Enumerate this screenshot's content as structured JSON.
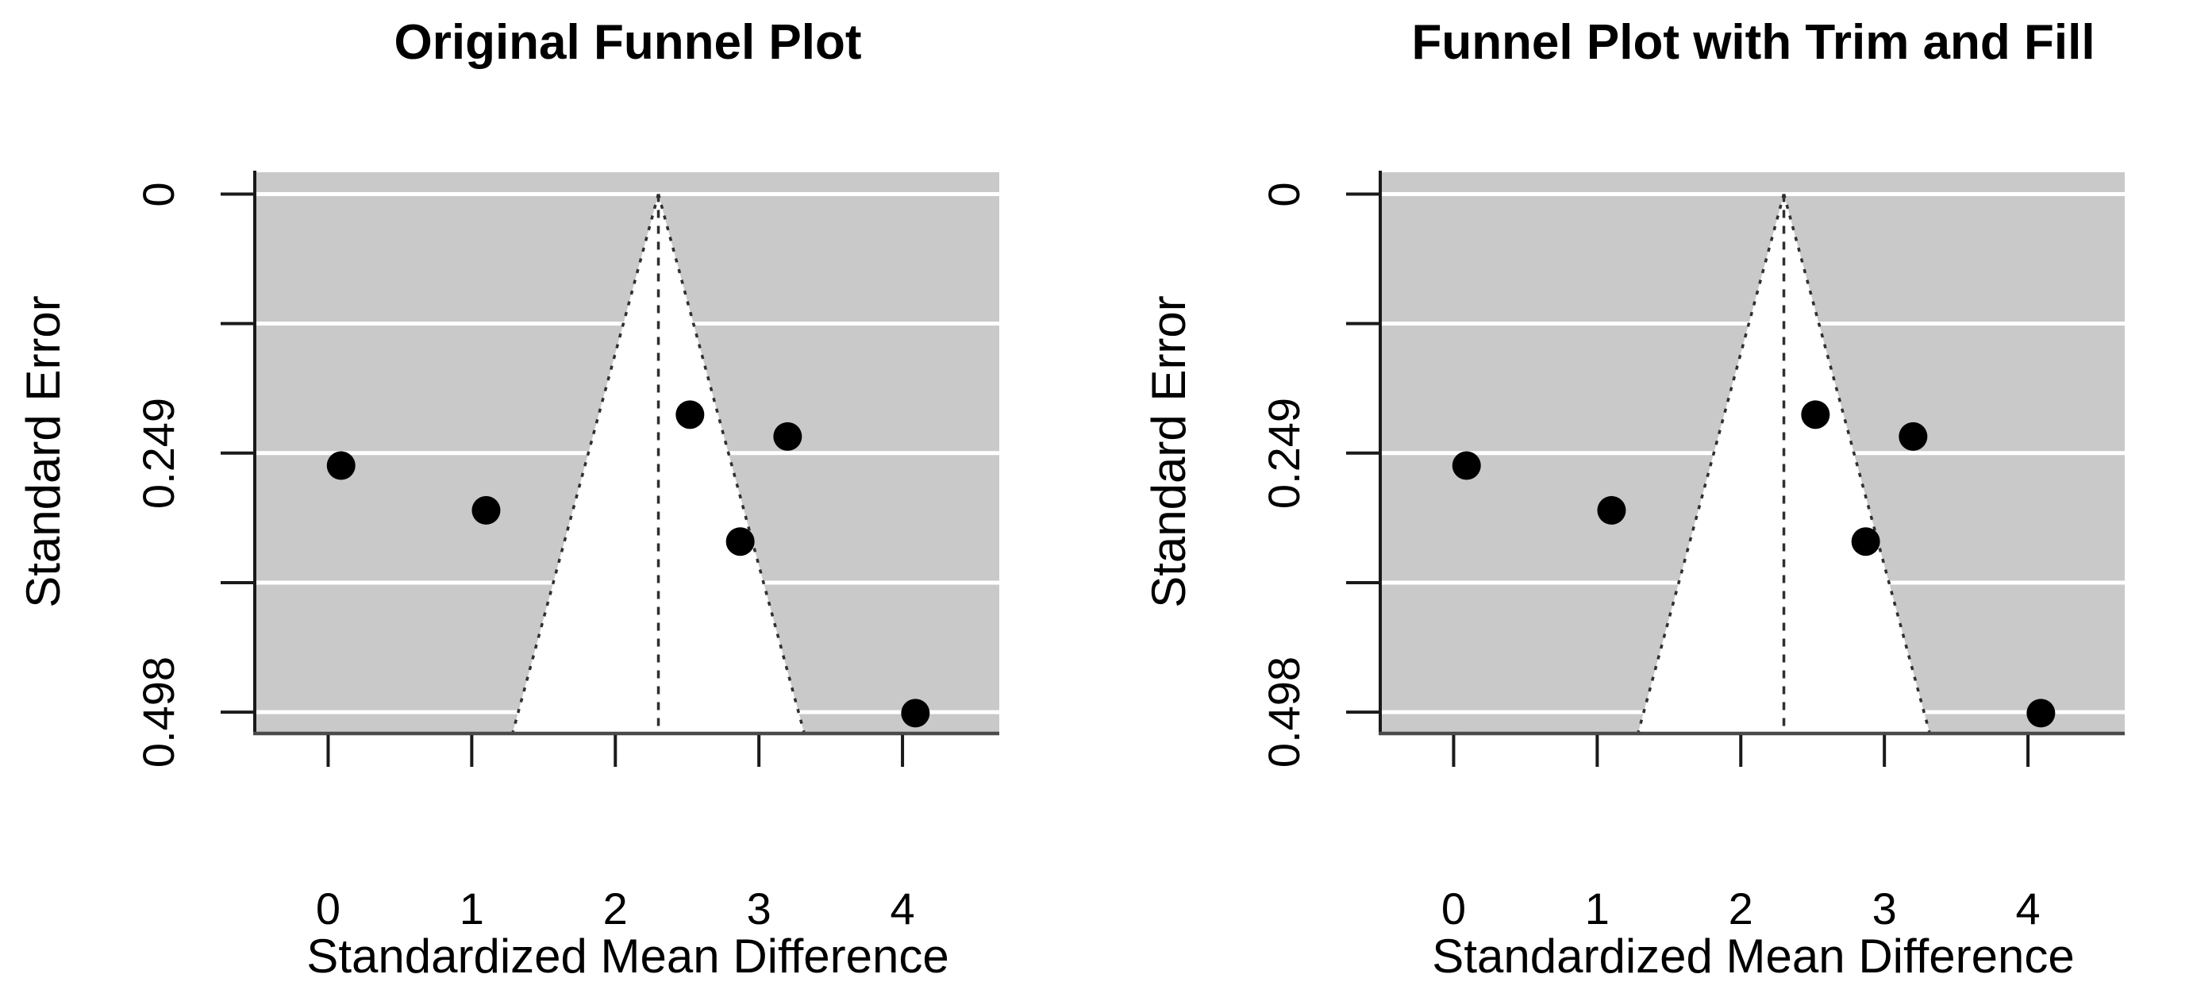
{
  "figure": {
    "background": "#ffffff"
  },
  "chart_data": [
    {
      "type": "scatter",
      "subtype": "funnel-plot",
      "title": "Original Funnel Plot",
      "xlabel": "Standardized Mean Difference",
      "ylabel": "Standard Error",
      "x_ticks": [
        0,
        1,
        2,
        3,
        4
      ],
      "x_tick_labels": [
        "0",
        "1",
        "2",
        "3",
        "4"
      ],
      "y_ticks": [
        0,
        0.1245,
        0.249,
        0.3735,
        0.498
      ],
      "y_tick_labels": [
        "0",
        "",
        "0.249",
        "",
        "0.498"
      ],
      "xlim": [
        -0.5,
        4.674
      ],
      "ylim": [
        -0.021,
        0.517
      ],
      "y_axis_inverted": true,
      "grid": true,
      "legend": null,
      "center_estimate": 2.3,
      "ci_multiplier": 1.96,
      "points": [
        {
          "x": 0.09,
          "se": 0.261
        },
        {
          "x": 1.1,
          "se": 0.304
        },
        {
          "x": 2.52,
          "se": 0.212
        },
        {
          "x": 3.2,
          "se": 0.233
        },
        {
          "x": 2.87,
          "se": 0.334
        },
        {
          "x": 4.09,
          "se": 0.499
        }
      ],
      "colors": {
        "region": "#c9c9c9",
        "funnel": "#ffffff",
        "gridline": "#ffffff",
        "dashed": "#2f2f2f",
        "point": "#000000",
        "y_axis": "#1a1a1a",
        "x_axis": "#4a4a4a"
      }
    },
    {
      "type": "scatter",
      "subtype": "funnel-plot",
      "title": "Funnel Plot with Trim and Fill",
      "xlabel": "Standardized Mean Difference",
      "ylabel": "Standard Error",
      "x_ticks": [
        0,
        1,
        2,
        3,
        4
      ],
      "x_tick_labels": [
        "0",
        "1",
        "2",
        "3",
        "4"
      ],
      "y_ticks": [
        0,
        0.1245,
        0.249,
        0.3735,
        0.498
      ],
      "y_tick_labels": [
        "0",
        "",
        "0.249",
        "",
        "0.498"
      ],
      "xlim": [
        -0.5,
        4.674
      ],
      "ylim": [
        -0.021,
        0.517
      ],
      "y_axis_inverted": true,
      "grid": true,
      "legend": null,
      "center_estimate": 2.3,
      "ci_multiplier": 1.96,
      "points": [
        {
          "x": 0.09,
          "se": 0.261
        },
        {
          "x": 1.1,
          "se": 0.304
        },
        {
          "x": 2.52,
          "se": 0.212
        },
        {
          "x": 3.2,
          "se": 0.233
        },
        {
          "x": 2.87,
          "se": 0.334
        },
        {
          "x": 4.09,
          "se": 0.499
        }
      ],
      "colors": {
        "region": "#c9c9c9",
        "funnel": "#ffffff",
        "gridline": "#ffffff",
        "dashed": "#2f2f2f",
        "point": "#000000",
        "y_axis": "#1a1a1a",
        "x_axis": "#4a4a4a"
      }
    }
  ]
}
